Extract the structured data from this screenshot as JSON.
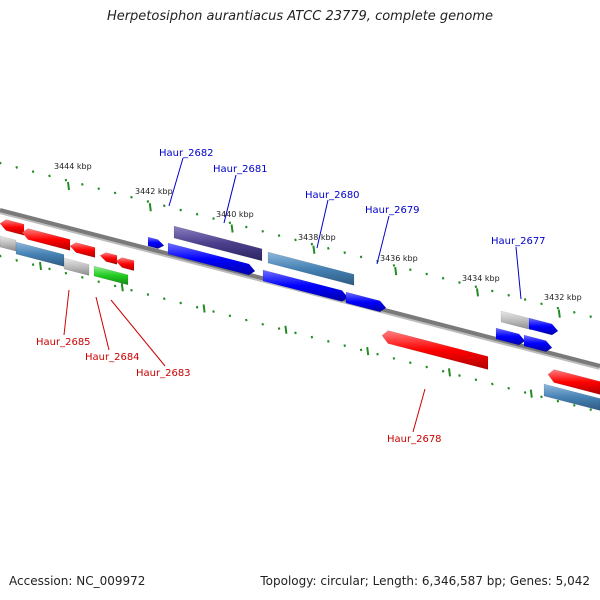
{
  "title": "Herpetosiphon aurantiacus ATCC 23779, complete genome",
  "accession": "Accession: NC_009972",
  "summary": "Topology: circular; Length: 6,346,587 bp; Genes: 5,042",
  "colors": {
    "forward_gene": "#0000ff",
    "reverse_gene": "#ff0000",
    "rna_gene": "#22bb22",
    "pseudo_gene": "#bbbbbb",
    "steelblue_gene": "#4682b4",
    "highlight_gene": "#4b3f8c",
    "forward_label": "#0000cc",
    "reverse_label": "#cc0000",
    "backbone": "#808080",
    "tick": "#228b22"
  },
  "kbp_labels": [
    "3444 kbp",
    "3442 kbp",
    "3440 kbp",
    "3438 kbp",
    "3436 kbp",
    "3434 kbp",
    "3432 kbp"
  ],
  "gene_labels": {
    "forward": [
      "Haur_2682",
      "Haur_2681",
      "Haur_2680",
      "Haur_2679",
      "Haur_2677"
    ],
    "reverse": [
      "Haur_2685",
      "Haur_2684",
      "Haur_2683",
      "Haur_2678"
    ]
  }
}
